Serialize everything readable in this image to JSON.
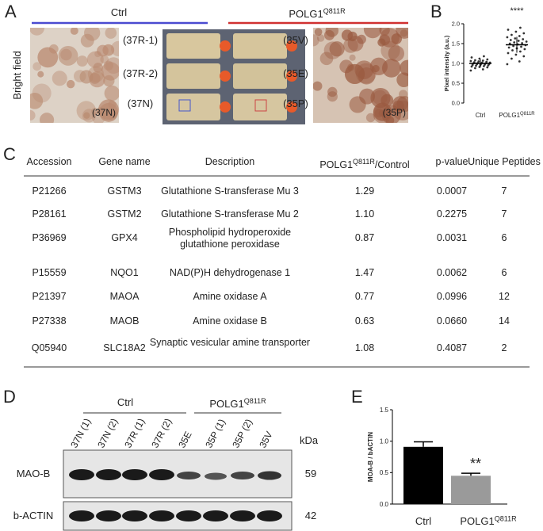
{
  "panels": {
    "a": "A",
    "b": "B",
    "c": "C",
    "d": "D",
    "e": "E"
  },
  "panel_a": {
    "ctrl_label": "Ctrl",
    "mutant_label": {
      "text": "POLG1",
      "sup": "Q811R"
    },
    "row_label": "Bright field",
    "left_image_label": "(37N)",
    "right_image_label": "(35P)",
    "flask_labels_left": [
      "(37R-1)",
      "(37R-2)",
      "(37N)"
    ],
    "flask_labels_right": [
      "(35V)",
      "(35E)",
      "(35P)"
    ]
  },
  "chart_data": [
    {
      "type": "scatter",
      "y_label": "Pixel intensity (a.u.)",
      "significance": "****",
      "categories": [
        "Ctrl",
        {
          "text": "POLG1",
          "sup": "Q811R"
        }
      ],
      "ylim": [
        0,
        2.0
      ],
      "yticks": [
        {
          "value": 0,
          "label": "0.0"
        },
        {
          "value": 0.5,
          "label": "0.5"
        },
        {
          "value": 1.0,
          "label": "1.0"
        },
        {
          "value": 1.5,
          "label": "1.5"
        },
        {
          "value": 2.0,
          "label": "2.0"
        }
      ],
      "series": [
        {
          "color": "#333333",
          "mean": 1.0,
          "sd": 0.1,
          "values": [
            0.82,
            0.85,
            0.88,
            0.9,
            0.91,
            0.92,
            0.93,
            0.94,
            0.95,
            0.96,
            0.96,
            0.97,
            0.98,
            0.98,
            0.99,
            1.0,
            1.0,
            1.01,
            1.02,
            1.02,
            1.03,
            1.04,
            1.05,
            1.06,
            1.07,
            1.08,
            1.1,
            1.12,
            1.15,
            1.18
          ]
        },
        {
          "color": "#333333",
          "mean": 1.47,
          "sd": 0.2,
          "values": [
            0.98,
            1.05,
            1.12,
            1.18,
            1.22,
            1.26,
            1.3,
            1.33,
            1.36,
            1.38,
            1.4,
            1.42,
            1.44,
            1.46,
            1.48,
            1.5,
            1.51,
            1.53,
            1.55,
            1.57,
            1.59,
            1.61,
            1.63,
            1.66,
            1.69,
            1.72,
            1.76,
            1.8,
            1.85,
            1.9
          ]
        }
      ]
    },
    {
      "type": "bar",
      "y_label": "MOA-B / bACTIN",
      "annotation": "**",
      "categories": [
        "Ctrl",
        {
          "text": "POLG1",
          "sup": "Q811R"
        }
      ],
      "values": [
        0.91,
        0.45
      ],
      "errors": [
        0.08,
        0.04
      ],
      "colors": [
        "#000000",
        "#9a9a9a"
      ],
      "ylim": [
        0,
        1.5
      ],
      "yticks": [
        {
          "value": 0,
          "label": "0.0"
        },
        {
          "value": 0.5,
          "label": "0.5"
        },
        {
          "value": 1.0,
          "label": "1.0"
        },
        {
          "value": 1.5,
          "label": "1.5"
        }
      ]
    }
  ],
  "table": {
    "columns": [
      "Accession",
      "Gene name",
      "Description",
      {
        "text": "POLG1",
        "sup": "Q811R",
        "after": "/Control"
      },
      "p-value",
      "Unique Peptides"
    ],
    "rows": [
      [
        "P21266",
        "GSTM3",
        "Glutathione S-transferase Mu 3",
        "1.29",
        "0.0007",
        "7"
      ],
      [
        "P28161",
        "GSTM2",
        "Glutathione S-transferase Mu 2",
        "1.10",
        "0.2275",
        "7"
      ],
      [
        "P36969",
        "GPX4",
        "Phospholipid hydroperoxide glutathione peroxidase",
        "0.87",
        "0.0031",
        "6"
      ],
      [
        "P15559",
        "NQO1",
        "NAD(P)H dehydrogenase 1",
        "1.47",
        "0.0062",
        "6"
      ],
      [
        "P21397",
        "MAOA",
        "Amine oxidase A",
        "0.77",
        "0.0996",
        "12"
      ],
      [
        "P27338",
        "MAOB",
        "Amine oxidase B",
        "0.63",
        "0.0660",
        "14"
      ],
      [
        "Q05940",
        "SLC18A2",
        "Synaptic vesicular amine transporter",
        "1.08",
        "0.4087",
        "2"
      ]
    ]
  },
  "panel_d": {
    "ctrl_label": "Ctrl",
    "mutant_label": {
      "text": "POLG1",
      "sup": "Q811R"
    },
    "lanes": [
      "37N (1)",
      "37N (2)",
      "37R (1)",
      "37R (2)",
      "35E",
      "35P (1)",
      "35P (2)",
      "35V"
    ],
    "kda_label": "kDa",
    "blots": [
      {
        "name": "MAO-B",
        "kda": 59
      },
      {
        "name": "b-ACTIN",
        "kda": 42
      }
    ]
  }
}
